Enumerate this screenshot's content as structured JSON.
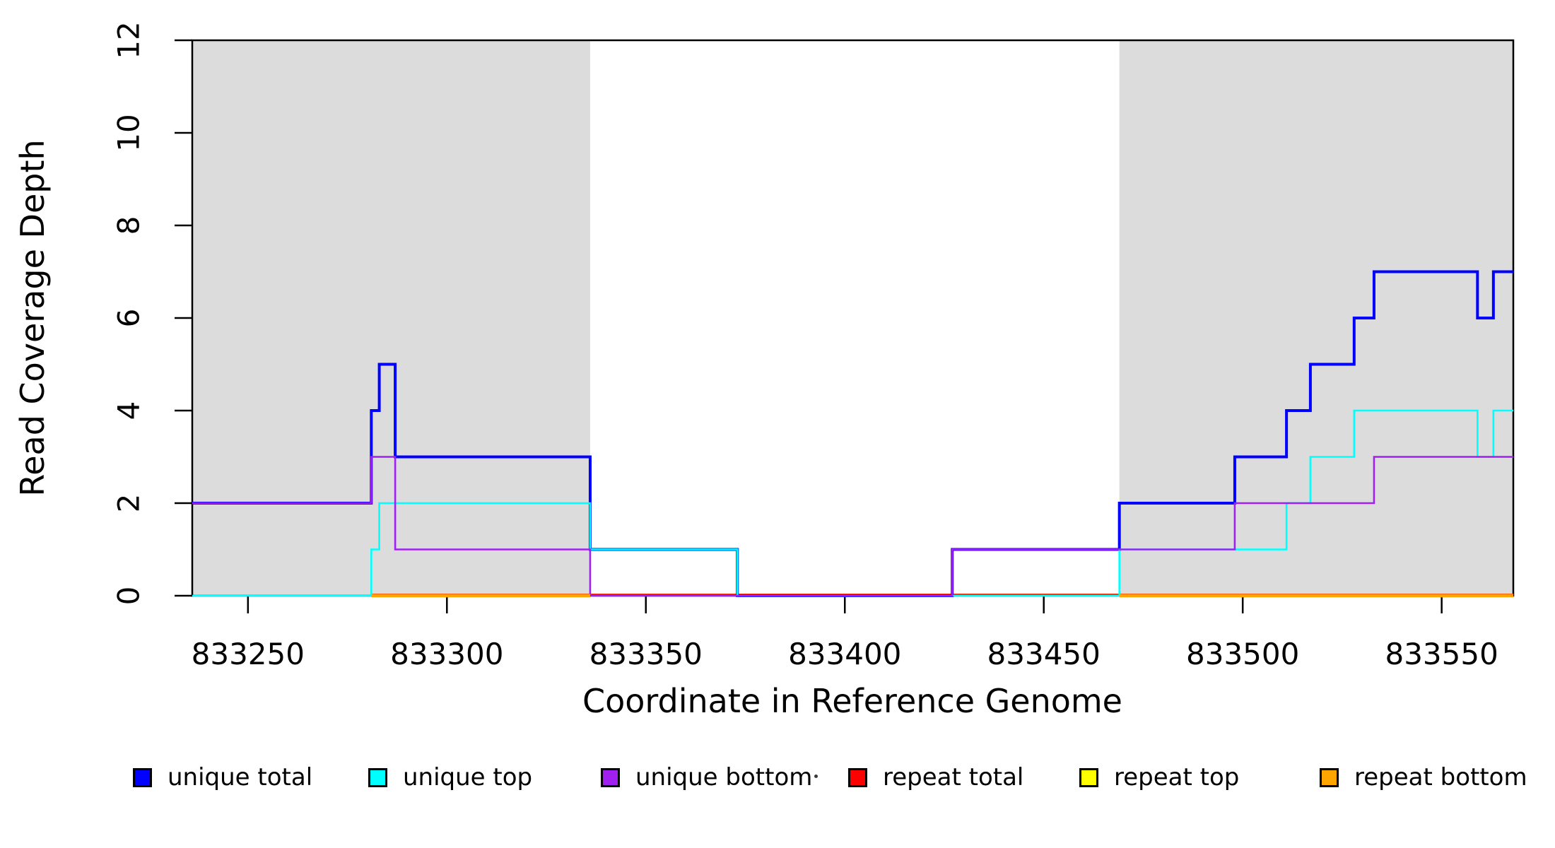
{
  "chart_data": {
    "type": "line",
    "subtype": "step-coverage-plot",
    "title": "",
    "xlabel": "Coordinate in Reference Genome",
    "ylabel": "Read Coverage Depth",
    "xlim": [
      833236,
      833568
    ],
    "ylim": [
      0,
      12
    ],
    "x_ticks": [
      833250,
      833300,
      833350,
      833400,
      833450,
      833500,
      833550
    ],
    "y_ticks": [
      0,
      2,
      4,
      6,
      8,
      10,
      12
    ],
    "grid": false,
    "legend_position": "bottom",
    "background_color": "#ffffff",
    "shaded_region_color": "#DCDCDC",
    "shaded_regions": [
      {
        "name": "repeat-region-1",
        "x0": 833236,
        "x1": 833336
      },
      {
        "name": "repeat-region-2",
        "x0": 833469,
        "x1": 833568
      }
    ],
    "series": [
      {
        "name": "unique total",
        "color": "#0000FF",
        "width": 4,
        "steps": [
          [
            833236,
            2
          ],
          [
            833281,
            4
          ],
          [
            833283,
            5
          ],
          [
            833287,
            3
          ],
          [
            833336,
            1
          ],
          [
            833373,
            0
          ],
          [
            833427,
            1
          ],
          [
            833469,
            2
          ],
          [
            833498,
            3
          ],
          [
            833511,
            4
          ],
          [
            833517,
            5
          ],
          [
            833528,
            6
          ],
          [
            833533,
            7
          ],
          [
            833559,
            6
          ],
          [
            833563,
            7
          ]
        ],
        "x_end": 833568
      },
      {
        "name": "unique top",
        "color": "#00FFFF",
        "width": 2.6,
        "steps": [
          [
            833236,
            0
          ],
          [
            833281,
            1
          ],
          [
            833283,
            2
          ],
          [
            833336,
            1
          ],
          [
            833373,
            0
          ],
          [
            833469,
            1
          ],
          [
            833511,
            2
          ],
          [
            833517,
            3
          ],
          [
            833528,
            4
          ],
          [
            833559,
            3
          ],
          [
            833563,
            4
          ]
        ],
        "x_end": 833568
      },
      {
        "name": "unique bottom",
        "color": "#A020F0",
        "width": 2.6,
        "steps": [
          [
            833236,
            2
          ],
          [
            833281,
            3
          ],
          [
            833287,
            1
          ],
          [
            833336,
            0
          ],
          [
            833427,
            1
          ],
          [
            833498,
            2
          ],
          [
            833533,
            3
          ]
        ],
        "x_end": 833568
      },
      {
        "name": "repeat total",
        "color": "#FF0000",
        "width": 3,
        "steps": [
          [
            833281,
            0
          ]
        ],
        "x_end": 833568
      },
      {
        "name": "repeat top",
        "color": "#FFFF00",
        "width": 3,
        "steps": [
          [
            833281,
            0
          ]
        ],
        "x_end": 833568
      },
      {
        "name": "repeat bottom",
        "color": "#FFA500",
        "width": 3,
        "steps": [
          [
            833281,
            0
          ]
        ],
        "x_end": 833568
      }
    ],
    "legend": [
      {
        "label": "unique total",
        "color": "#0000FF"
      },
      {
        "label": "unique top",
        "color": "#00FFFF"
      },
      {
        "label": "unique bottom",
        "color": "#A020F0"
      },
      {
        "label": "repeat total",
        "color": "#FF0000"
      },
      {
        "label": "repeat top",
        "color": "#FFFF00"
      },
      {
        "label": "repeat bottom",
        "color": "#FFA500"
      }
    ]
  }
}
